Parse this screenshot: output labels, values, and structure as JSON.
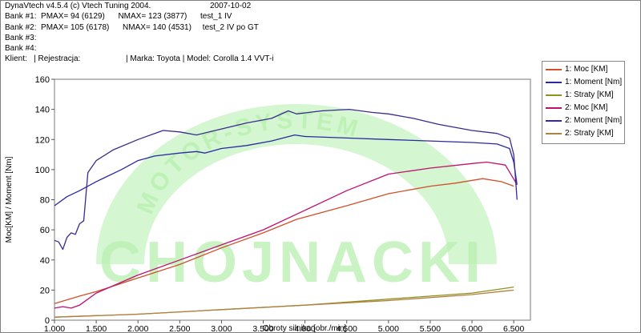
{
  "header": {
    "app": "DynaVtech v4.5.4 (c) Vtech Tuning 2004.",
    "date": "2007-10-02",
    "bank1": "Bank #1:  PMAX= 94 (6129)      NMAX= 123 (3877)      test_1 IV",
    "bank2": "Bank #2:  PMAX= 105 (6178)      NMAX= 140 (4531)     test_2 IV po GT",
    "bank3": "Bank #3:",
    "bank4": "Bank #4:",
    "client": "Klient:   | Rejestracja:",
    "car": "| Marka: Toyota | Model: Corolla 1.4 VVT-i"
  },
  "watermark": {
    "word": "CHOJNACKI",
    "arc": "MOTOR-SYSTEM",
    "color": "#b8f0b0"
  },
  "colors": {
    "moc1": "#d0502a",
    "moment1": "#2a2aa0",
    "straty1": "#909020",
    "moc2": "#c01070",
    "moment2": "#3a2a90",
    "straty2": "#b08040"
  },
  "legend": [
    {
      "label": "1: Moc [KM]",
      "color": "#d0502a"
    },
    {
      "label": "1: Moment [Nm]",
      "color": "#2a2aa0"
    },
    {
      "label": "1: Straty [KM]",
      "color": "#909020"
    },
    {
      "label": "2: Moc [KM]",
      "color": "#c01070"
    },
    {
      "label": "2: Moment [Nm]",
      "color": "#3a2a90"
    },
    {
      "label": "2: Straty [KM]",
      "color": "#b08040"
    }
  ],
  "chart_data": {
    "type": "line",
    "xlabel": "Obroty silnika [obr./min]",
    "ylabel": "Moc[KM] / Moment [Nm]",
    "xlim": [
      1000,
      6700
    ],
    "ylim": [
      0,
      160
    ],
    "xticks": [
      1000,
      1500,
      2000,
      2500,
      3000,
      3500,
      4000,
      4500,
      5000,
      5500,
      6000,
      6500
    ],
    "xtick_labels": [
      "1.000",
      "1.500",
      "2.000",
      "2.500",
      "3.000",
      "3.500",
      "4.000",
      "4.500",
      "5.000",
      "5.500",
      "6.000",
      "6.500"
    ],
    "yticks": [
      0,
      20,
      40,
      60,
      80,
      100,
      120,
      140,
      160
    ],
    "ytick_labels": [
      "0",
      "20",
      "40",
      "60",
      "80",
      "100",
      "120",
      "140",
      "160"
    ],
    "series": [
      {
        "name": "1: Moc [KM]",
        "color": "#d0502a",
        "x": [
          1000,
          1300,
          1500,
          2000,
          2500,
          3000,
          3500,
          3900,
          4500,
          5000,
          5500,
          5800,
          6129,
          6350,
          6500
        ],
        "y": [
          11,
          16,
          19,
          28,
          37,
          48,
          58,
          67,
          76,
          84,
          89,
          91,
          94,
          92,
          89
        ]
      },
      {
        "name": "1: Moment [Nm]",
        "color": "#2a2aa0",
        "x": [
          1000,
          1150,
          1300,
          1500,
          1800,
          2000,
          2200,
          2500,
          2700,
          2800,
          3000,
          3300,
          3600,
          3877,
          4000,
          4500,
          5000,
          5500,
          6000,
          6300,
          6450,
          6500,
          6540
        ],
        "y": [
          76,
          82,
          86,
          92,
          100,
          106,
          109,
          111,
          112,
          111,
          114,
          116,
          119,
          123,
          122,
          121,
          120,
          119,
          118,
          117,
          114,
          105,
          90
        ]
      },
      {
        "name": "1: Straty [KM]",
        "color": "#909020",
        "x": [
          1000,
          2000,
          3000,
          4000,
          5000,
          6000,
          6500
        ],
        "y": [
          2,
          4,
          7,
          10,
          14,
          18,
          22
        ]
      },
      {
        "name": "2: Moc [KM]",
        "color": "#c01070",
        "x": [
          1000,
          1100,
          1200,
          1300,
          1400,
          1500,
          2000,
          2500,
          3000,
          3500,
          4000,
          4500,
          5000,
          5500,
          6000,
          6178,
          6400,
          6540
        ],
        "y": [
          8,
          9,
          8,
          10,
          14,
          18,
          30,
          40,
          50,
          60,
          73,
          86,
          97,
          101,
          104,
          105,
          103,
          90
        ]
      },
      {
        "name": "2: Moment [Nm]",
        "color": "#3a2a90",
        "x": [
          1000,
          1050,
          1100,
          1150,
          1200,
          1250,
          1300,
          1350,
          1400,
          1450,
          1500,
          1700,
          2000,
          2300,
          2500,
          2700,
          3000,
          3300,
          3600,
          3800,
          3900,
          4200,
          4531,
          4800,
          5000,
          5300,
          5600,
          6000,
          6300,
          6450,
          6500,
          6540
        ],
        "y": [
          53,
          52,
          47,
          55,
          58,
          57,
          64,
          66,
          98,
          102,
          106,
          113,
          120,
          126,
          125,
          123,
          127,
          131,
          134,
          139,
          137,
          139,
          140,
          138,
          137,
          134,
          130,
          126,
          124,
          121,
          110,
          80
        ]
      },
      {
        "name": "2: Straty [KM]",
        "color": "#b08040",
        "x": [
          1000,
          2000,
          3000,
          4000,
          5000,
          6000,
          6500
        ],
        "y": [
          2,
          4,
          7,
          10,
          13,
          17,
          20
        ]
      }
    ]
  }
}
